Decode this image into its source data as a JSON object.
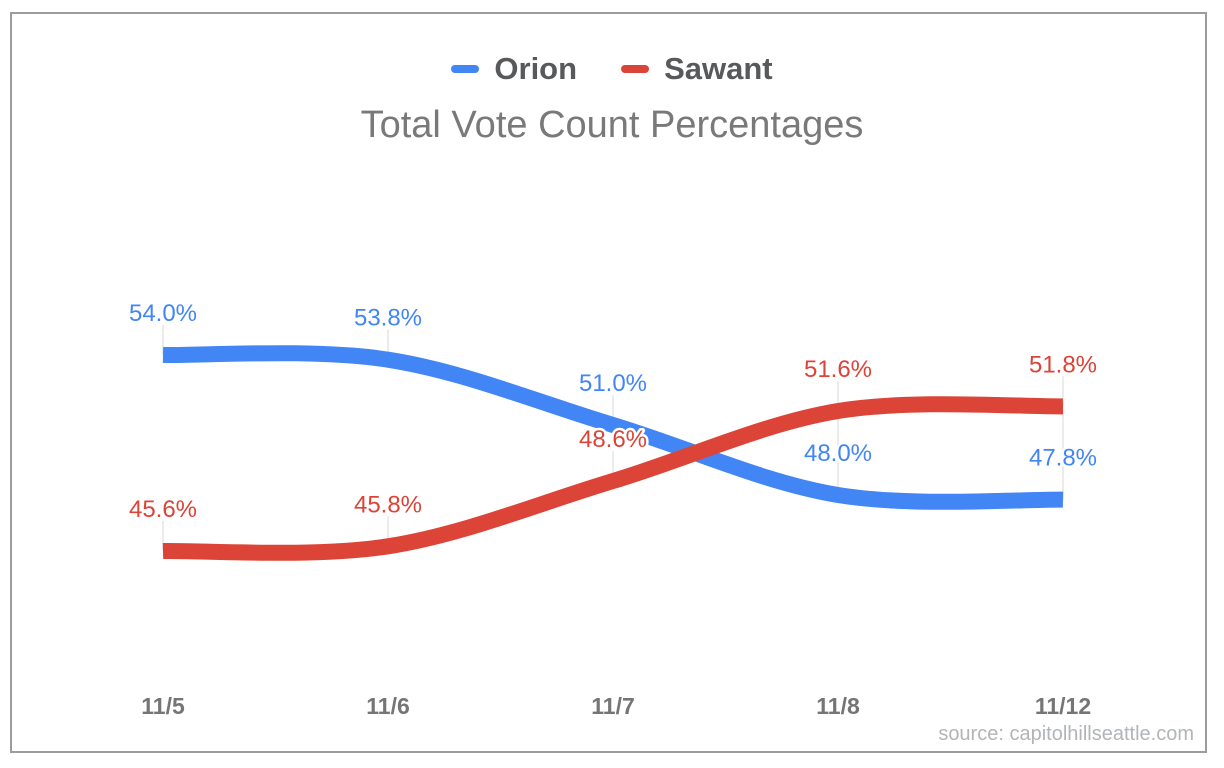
{
  "chart_data": {
    "type": "line",
    "title": "Total Vote Count Percentages",
    "x": [
      "11/5",
      "11/6",
      "11/7",
      "11/8",
      "11/12"
    ],
    "series": [
      {
        "name": "Orion",
        "color": "#4285F4",
        "values": [
          54.0,
          53.8,
          51.0,
          48.0,
          47.8
        ],
        "point_labels": [
          "54.0%",
          "53.8%",
          "51.0%",
          "48.0%",
          "47.8%"
        ]
      },
      {
        "name": "Sawant",
        "color": "#DB4437",
        "values": [
          45.6,
          45.8,
          48.6,
          51.6,
          51.8
        ],
        "point_labels": [
          "45.6%",
          "45.8%",
          "48.6%",
          "51.6%",
          "51.8%"
        ]
      }
    ],
    "line_style": "smooth",
    "line_thickness": 16,
    "grid": false,
    "legend_position": "top",
    "xlabel": "",
    "ylabel": "",
    "source": "source: capitolhillseattle.com",
    "axis_label_color": "#757575",
    "stem_color": "#e4e4e4"
  }
}
